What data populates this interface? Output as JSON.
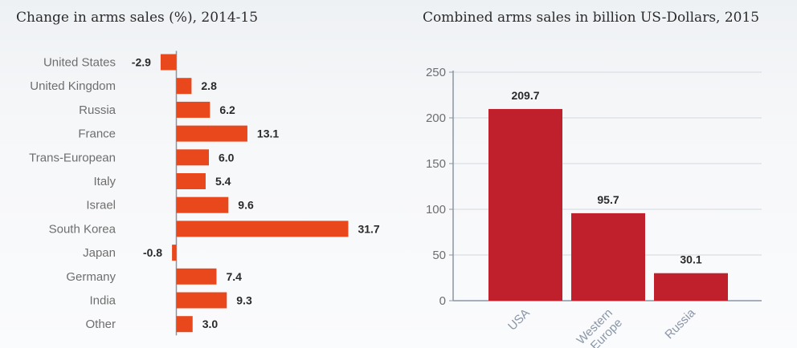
{
  "chart_data": [
    {
      "type": "bar",
      "orientation": "horizontal",
      "title": "Change in arms sales (%), 2014-15",
      "categories": [
        "United States",
        "United Kingdom",
        "Russia",
        "France",
        "Trans-European",
        "Italy",
        "Israel",
        "South Korea",
        "Japan",
        "Germany",
        "India",
        "Other"
      ],
      "values": [
        -2.9,
        2.8,
        6.2,
        13.1,
        6.0,
        5.4,
        9.6,
        31.7,
        -0.8,
        7.4,
        9.3,
        3.0
      ],
      "value_labels": [
        "-2.9",
        "2.8",
        "6.2",
        "13.1",
        "6.0",
        "5.4",
        "9.6",
        "31.7",
        "-0.8",
        "7.4",
        "9.3",
        "3.0"
      ],
      "xlabel": "",
      "ylabel": "",
      "grid": false,
      "color": "#e8481c"
    },
    {
      "type": "bar",
      "title": "Combined arms sales in billion US-Dollars, 2015",
      "categories": [
        "USA",
        "Western Europe",
        "Russia"
      ],
      "values": [
        209.7,
        95.7,
        30.1
      ],
      "value_labels": [
        "209.7",
        "95.7",
        "30.1"
      ],
      "yticks": [
        "0",
        "50",
        "100",
        "150",
        "200",
        "250"
      ],
      "ylim": [
        0,
        250
      ],
      "xlabel": "",
      "ylabel": "",
      "grid": true,
      "color": "#c0202c"
    }
  ]
}
